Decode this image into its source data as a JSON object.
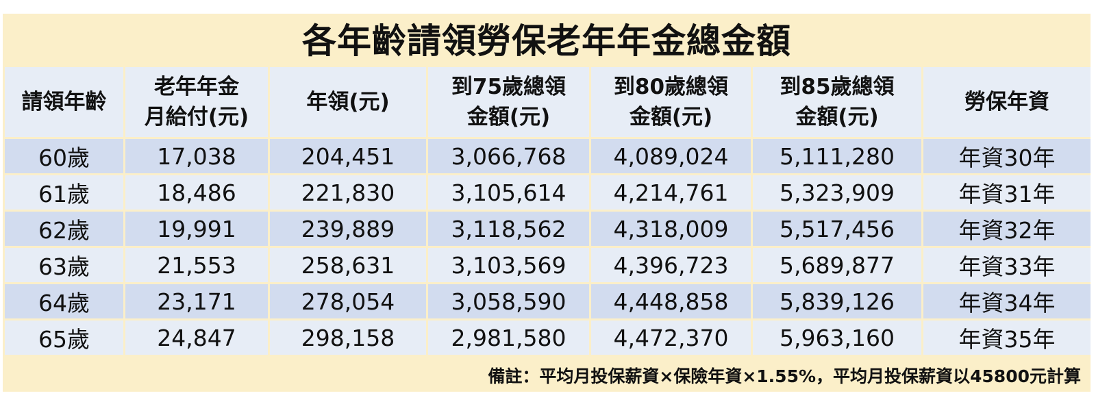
{
  "title": "各年齡請領勞保老年年金總金額",
  "headers": [
    {
      "line1": "請領年齡",
      "line2": ""
    },
    {
      "line1": "老年年金",
      "line2": "月給付(元)"
    },
    {
      "line1": "年領(元)",
      "line2": ""
    },
    {
      "line1": "到75歲總領",
      "line2": "金額(元)"
    },
    {
      "line1": "到80歲總領",
      "line2": "金額(元)"
    },
    {
      "line1": "到85歲總領",
      "line2": "金額(元)"
    },
    {
      "line1": "勞保年資",
      "line2": ""
    }
  ],
  "rows": [
    [
      "60歲",
      "17,038",
      "204,451",
      "3,066,768",
      "4,089,024",
      "5,111,280",
      "年資30年"
    ],
    [
      "61歲",
      "18,486",
      "221,830",
      "3,105,614",
      "4,214,761",
      "5,323,909",
      "年資31年"
    ],
    [
      "62歲",
      "19,991",
      "239,889",
      "3,118,562",
      "4,318,009",
      "5,517,456",
      "年資32年"
    ],
    [
      "63歲",
      "21,553",
      "258,631",
      "3,103,569",
      "4,396,723",
      "5,689,877",
      "年資33年"
    ],
    [
      "64歲",
      "23,171",
      "278,054",
      "3,058,590",
      "4,448,858",
      "5,839,126",
      "年資34年"
    ],
    [
      "65歲",
      "24,847",
      "298,158",
      "2,981,580",
      "4,472,370",
      "5,963,160",
      "年資35年"
    ]
  ],
  "footnote": "備註：平均月投保薪資×保險年資×1.55%，平均月投保薪資以45800元計算",
  "colors": {
    "frame_background": "#fbefc9",
    "header_background": "#e7edf6",
    "row_odd": "#d2dcef",
    "row_even": "#e7edf6"
  }
}
